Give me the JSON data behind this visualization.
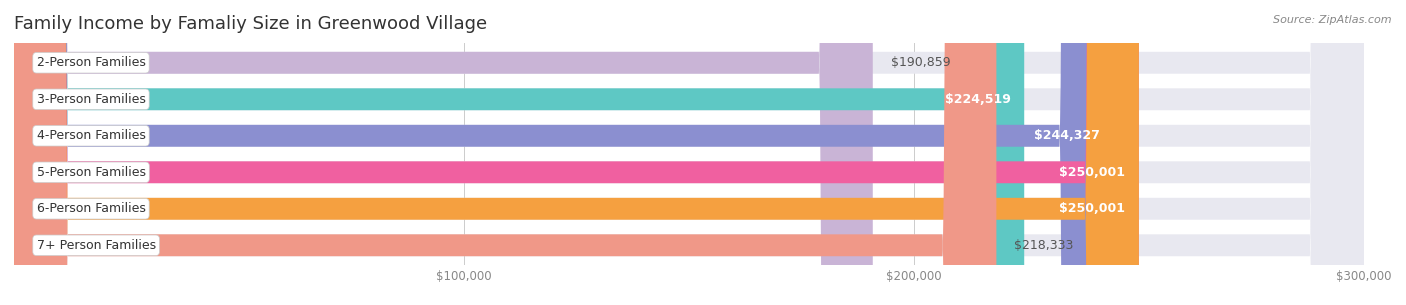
{
  "title": "Family Income by Famaliy Size in Greenwood Village",
  "source": "Source: ZipAtlas.com",
  "categories": [
    "2-Person Families",
    "3-Person Families",
    "4-Person Families",
    "5-Person Families",
    "6-Person Families",
    "7+ Person Families"
  ],
  "values": [
    190859,
    224519,
    244327,
    250001,
    250001,
    218333
  ],
  "bar_colors": [
    "#c9b4d6",
    "#5ec8c4",
    "#8b8fd0",
    "#f060a0",
    "#f5a040",
    "#f09888"
  ],
  "value_inside": [
    false,
    true,
    true,
    true,
    true,
    false
  ],
  "x_max": 300000,
  "x_min": 0,
  "x_ticks": [
    100000,
    200000,
    300000
  ],
  "x_tick_labels": [
    "$100,000",
    "$200,000",
    "$300,000"
  ],
  "value_labels": [
    "$190,859",
    "$224,519",
    "$244,327",
    "$250,001",
    "$250,001",
    "$218,333"
  ],
  "background_color": "#ffffff",
  "bar_bg_color": "#e8e8f0",
  "title_fontsize": 13,
  "label_fontsize": 9,
  "value_fontsize": 9,
  "tick_fontsize": 8.5
}
